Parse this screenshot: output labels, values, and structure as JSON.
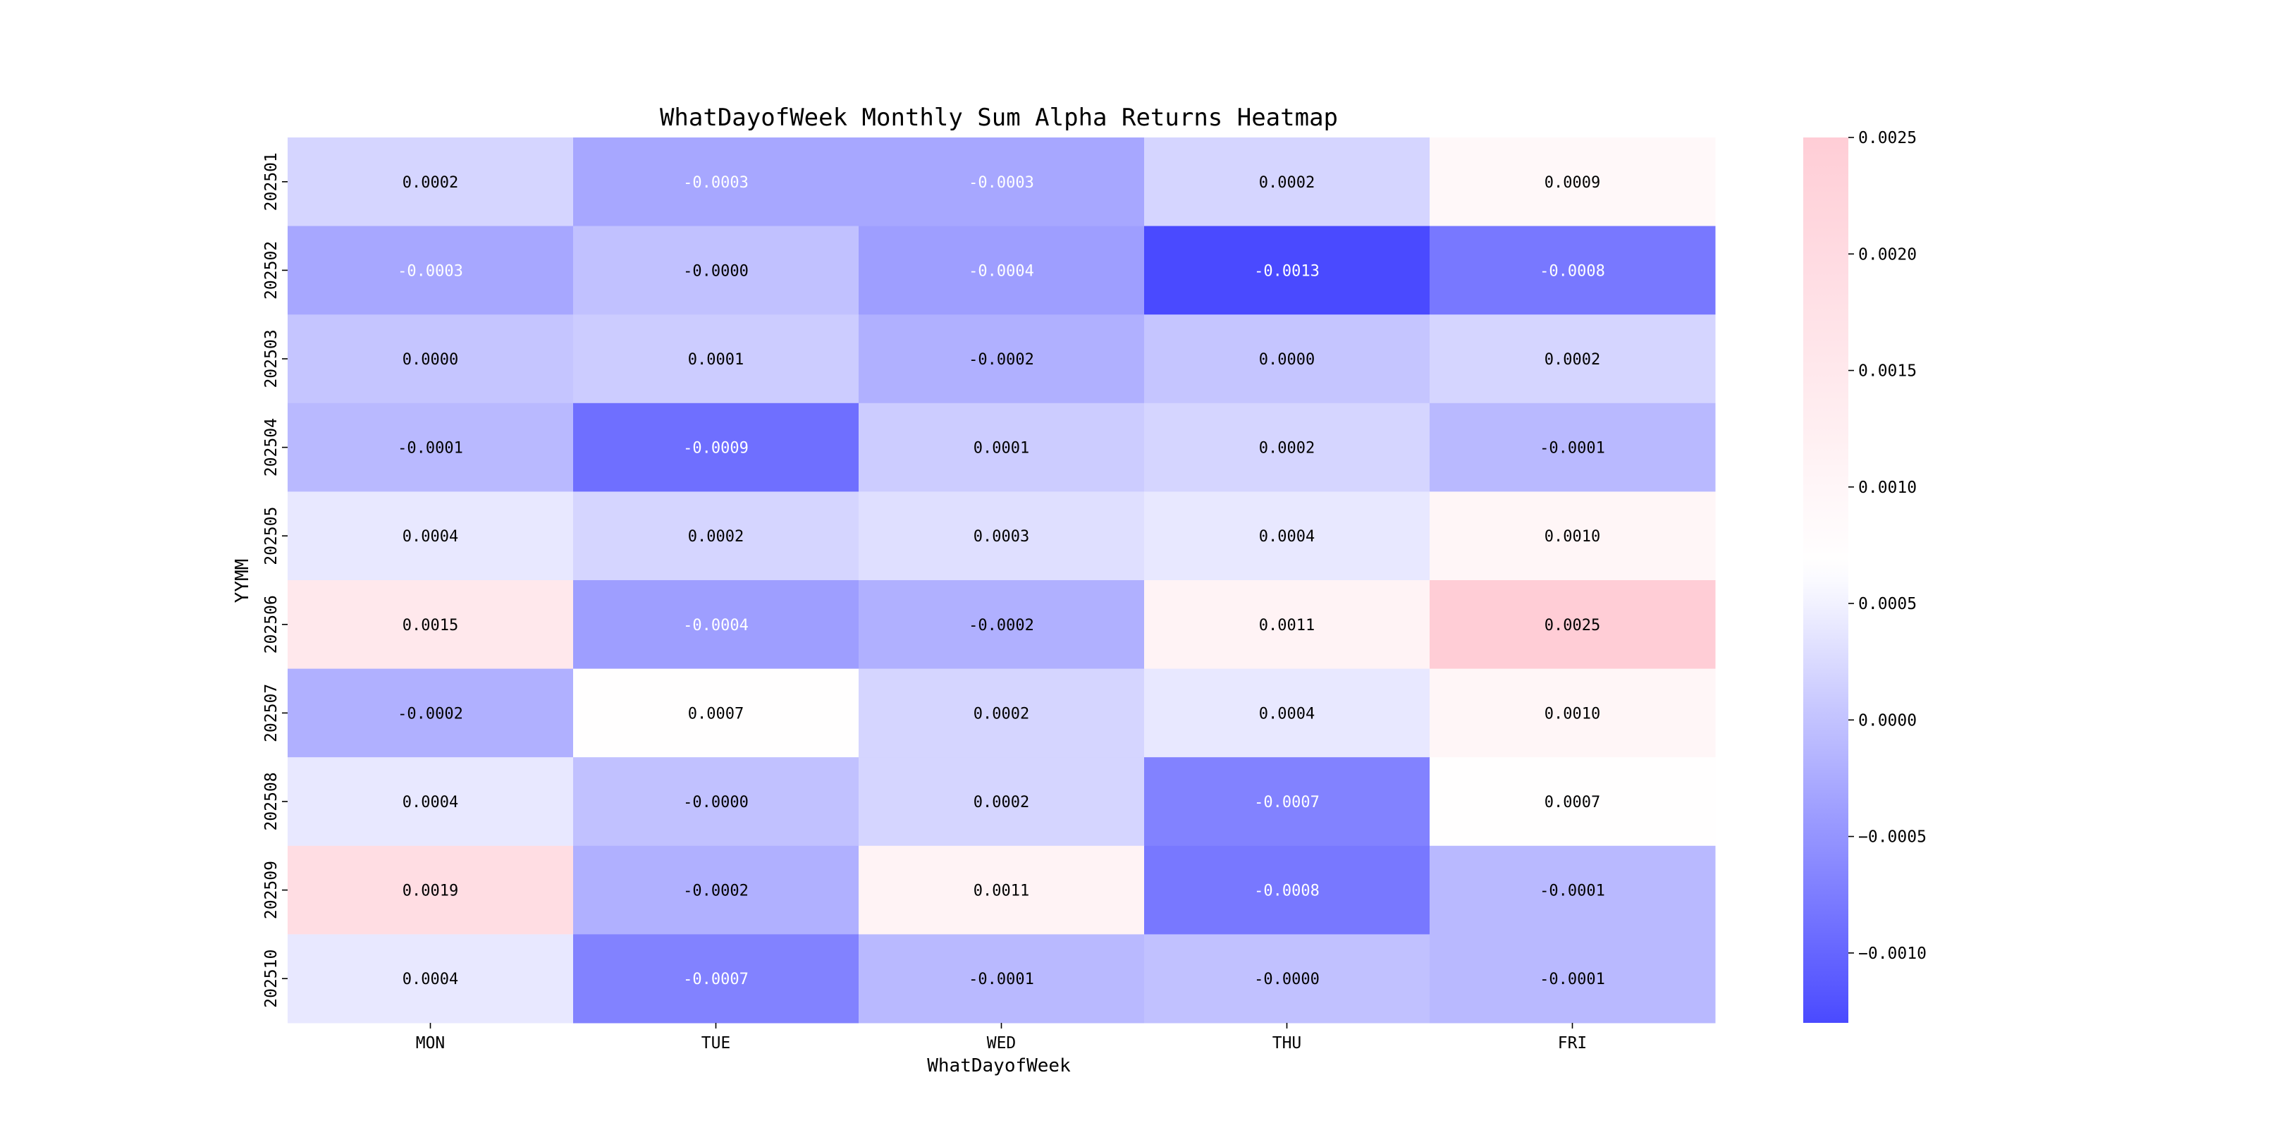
{
  "chart_data": {
    "type": "heatmap",
    "title": "WhatDayofWeek Monthly Sum Alpha Returns Heatmap",
    "xlabel": "WhatDayofWeek",
    "ylabel": "YYMM",
    "x_categories": [
      "MON",
      "TUE",
      "WED",
      "THU",
      "FRI"
    ],
    "y_categories": [
      "202501",
      "202502",
      "202503",
      "202504",
      "202505",
      "202506",
      "202507",
      "202508",
      "202509",
      "202510"
    ],
    "values": [
      [
        0.0002,
        -0.0003,
        -0.0003,
        0.0002,
        0.0009
      ],
      [
        -0.0003,
        -2e-05,
        -0.0004,
        -0.0013,
        -0.0008
      ],
      [
        3e-05,
        0.0001,
        -0.0002,
        3e-05,
        0.0002
      ],
      [
        -0.0001,
        -0.0009,
        0.0001,
        0.0002,
        -0.0001
      ],
      [
        0.0004,
        0.0002,
        0.0003,
        0.0004,
        0.001
      ],
      [
        0.0015,
        -0.0004,
        -0.0002,
        0.0011,
        0.0025
      ],
      [
        -0.0002,
        0.0007,
        0.0002,
        0.0004,
        0.001
      ],
      [
        0.0004,
        -2e-05,
        0.0002,
        -0.0007,
        0.0007
      ],
      [
        0.0019,
        -0.0002,
        0.0011,
        -0.0008,
        -0.0001
      ],
      [
        0.0004,
        -0.0007,
        -0.0001,
        -2e-05,
        -0.0001
      ]
    ],
    "cell_labels": [
      [
        "0.0002",
        "-0.0003",
        "-0.0003",
        "0.0002",
        "0.0009"
      ],
      [
        "-0.0003",
        "-0.0000",
        "-0.0004",
        "-0.0013",
        "-0.0008"
      ],
      [
        "0.0000",
        "0.0001",
        "-0.0002",
        "0.0000",
        "0.0002"
      ],
      [
        "-0.0001",
        "-0.0009",
        "0.0001",
        "0.0002",
        "-0.0001"
      ],
      [
        "0.0004",
        "0.0002",
        "0.0003",
        "0.0004",
        "0.0010"
      ],
      [
        "0.0015",
        "-0.0004",
        "-0.0002",
        "0.0011",
        "0.0025"
      ],
      [
        "-0.0002",
        "0.0007",
        "0.0002",
        "0.0004",
        "0.0010"
      ],
      [
        "0.0004",
        "-0.0000",
        "0.0002",
        "-0.0007",
        "0.0007"
      ],
      [
        "0.0019",
        "-0.0002",
        "0.0011",
        "-0.0008",
        "-0.0001"
      ],
      [
        "0.0004",
        "-0.0007",
        "-0.0001",
        "-0.0000",
        "-0.0001"
      ]
    ],
    "colorbar": {
      "vmin": -0.0013,
      "vmax": 0.0025,
      "ticks": [
        0.0025,
        0.002,
        0.0015,
        0.001,
        0.0005,
        0.0,
        -0.0005,
        -0.001
      ],
      "tick_labels": [
        "0.0025",
        "0.0020",
        "0.0015",
        "0.0010",
        "0.0005",
        "0.0000",
        "−0.0005",
        "−0.0010"
      ],
      "colors": {
        "low": "#4a4aff",
        "mid": "#ffffff",
        "high": "#ffcdd6"
      }
    }
  }
}
